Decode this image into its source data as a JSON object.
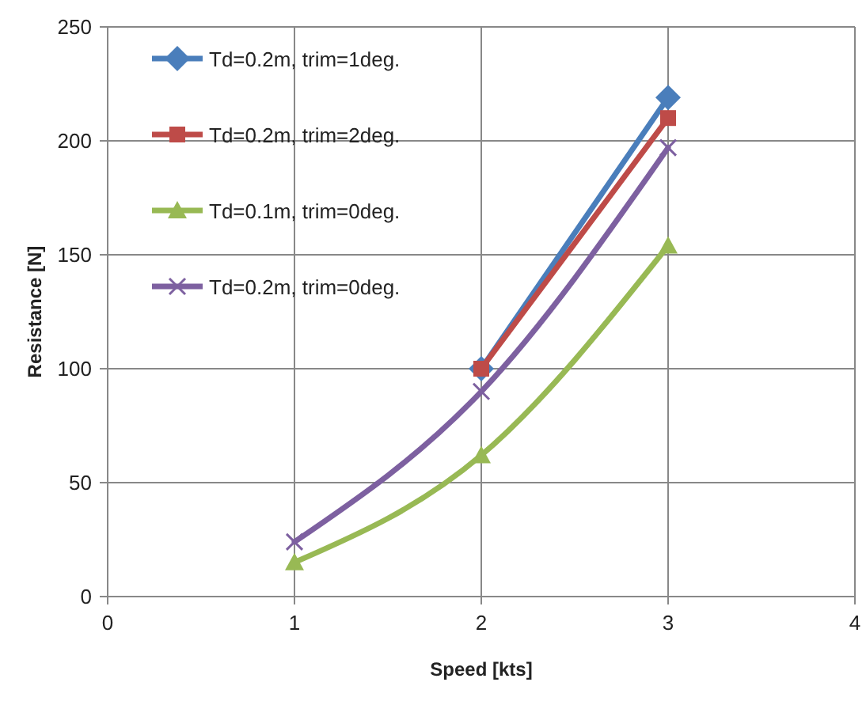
{
  "chart_data": {
    "type": "line",
    "xlabel": "Speed [kts]",
    "ylabel": "Resistance [N]",
    "xlim": [
      0,
      4
    ],
    "xticks": [
      0,
      1,
      2,
      3,
      4
    ],
    "ylim": [
      0,
      250
    ],
    "yticks": [
      0,
      50,
      100,
      150,
      200,
      250
    ],
    "grid": true,
    "legend": "top left",
    "line_style": "solid",
    "series": [
      {
        "name": "Td=0.2m, trim=1deg.",
        "color": "#4a7ebb",
        "marker": "diamond",
        "x": [
          2,
          3
        ],
        "values": [
          100,
          219
        ]
      },
      {
        "name": "Td=0.2m, trim=2deg.",
        "color": "#be4b48",
        "marker": "square",
        "x": [
          2,
          3
        ],
        "values": [
          100,
          210
        ]
      },
      {
        "name": "Td=0.1m, trim=0deg.",
        "color": "#98b954",
        "marker": "triangle",
        "x": [
          1,
          2,
          3
        ],
        "values": [
          15,
          62,
          154
        ]
      },
      {
        "name": "Td=0.2m, trim=0deg.",
        "color": "#7d60a0",
        "marker": "cross",
        "x": [
          1,
          2,
          3
        ],
        "values": [
          24,
          90,
          197
        ]
      }
    ]
  }
}
